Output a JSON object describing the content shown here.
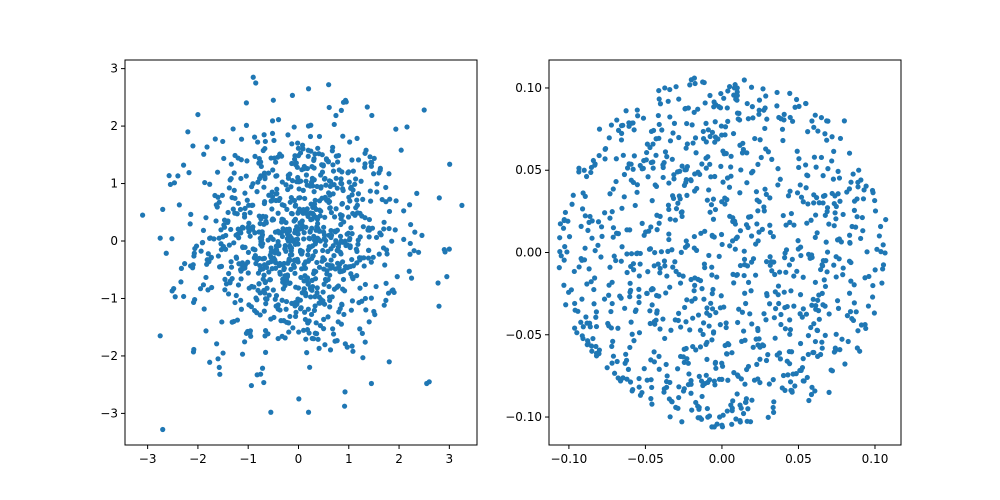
{
  "chart_data": [
    {
      "type": "scatter",
      "title": "",
      "xlabel": "",
      "ylabel": "",
      "xlim": [
        -3.45,
        3.55
      ],
      "ylim": [
        -3.55,
        3.15
      ],
      "xticks": [
        -3,
        -2,
        -1,
        0,
        1,
        2,
        3
      ],
      "yticks": [
        -3,
        -2,
        -1,
        0,
        1,
        2,
        3
      ],
      "xtick_labels": [
        "−3",
        "−2",
        "−1",
        "0",
        "1",
        "2",
        "3"
      ],
      "ytick_labels": [
        "−3",
        "−2",
        "−1",
        "0",
        "1",
        "2",
        "3"
      ],
      "grid": false,
      "marker_color": "#1f77b4",
      "distribution": "standard normal, ~1000 points",
      "series": [
        {
          "name": "",
          "x": [
            -3.1,
            -2.75,
            -2.7,
            3.25,
            2.9,
            2.55,
            2.5,
            -0.9,
            -0.85,
            -0.5,
            0.2,
            0.2,
            1.45,
            2.6,
            -2.75,
            -2.2,
            2.8,
            -1.6,
            -1.3,
            -1.5,
            -1.8,
            -2.7,
            1.45,
            -2.0,
            2.95,
            0.6,
            0.95,
            -0.55
          ],
          "y": [
            0.45,
            0.05,
            -3.28,
            0.62,
            -0.15,
            -2.48,
            2.28,
            2.85,
            2.75,
            2.45,
            2.65,
            -2.98,
            -2.48,
            -2.45,
            -1.65,
            1.9,
            0.75,
            -2.05,
            1.95,
            -1.95,
            -0.85,
            0.55,
            1.3,
            2.2,
            -0.62,
            2.72,
            2.42,
            -2.98
          ]
        }
      ]
    },
    {
      "type": "scatter",
      "title": "",
      "xlabel": "",
      "ylabel": "",
      "xlim": [
        -0.113,
        0.117
      ],
      "ylim": [
        -0.117,
        0.117
      ],
      "xticks": [
        -0.1,
        -0.05,
        0.0,
        0.05,
        0.1
      ],
      "yticks": [
        -0.1,
        -0.05,
        0.0,
        0.05,
        0.1
      ],
      "xtick_labels": [
        "−0.10",
        "−0.05",
        "0.00",
        "0.05",
        "0.10"
      ],
      "ytick_labels": [
        "−0.10",
        "−0.05",
        "0.00",
        "0.05",
        "0.10"
      ],
      "grid": false,
      "marker_color": "#1f77b4",
      "distribution": "uniform within disk of radius ~0.107, ~1000 points",
      "series": [
        {
          "name": "",
          "x": [
            -0.105,
            -0.103,
            0.105,
            0.107,
            -0.02,
            -0.018,
            0.01,
            0.012,
            -0.005,
            0.0,
            0.065,
            0.07,
            -0.08,
            -0.075,
            0.08,
            0.09,
            -0.09,
            -0.085
          ],
          "y": [
            -0.002,
            0.02,
            -0.01,
            0.02,
            0.105,
            0.106,
            0.1,
            -0.103,
            -0.106,
            -0.105,
            0.082,
            -0.085,
            0.075,
            -0.07,
            0.08,
            -0.06,
            0.05,
            -0.06
          ]
        }
      ]
    }
  ]
}
